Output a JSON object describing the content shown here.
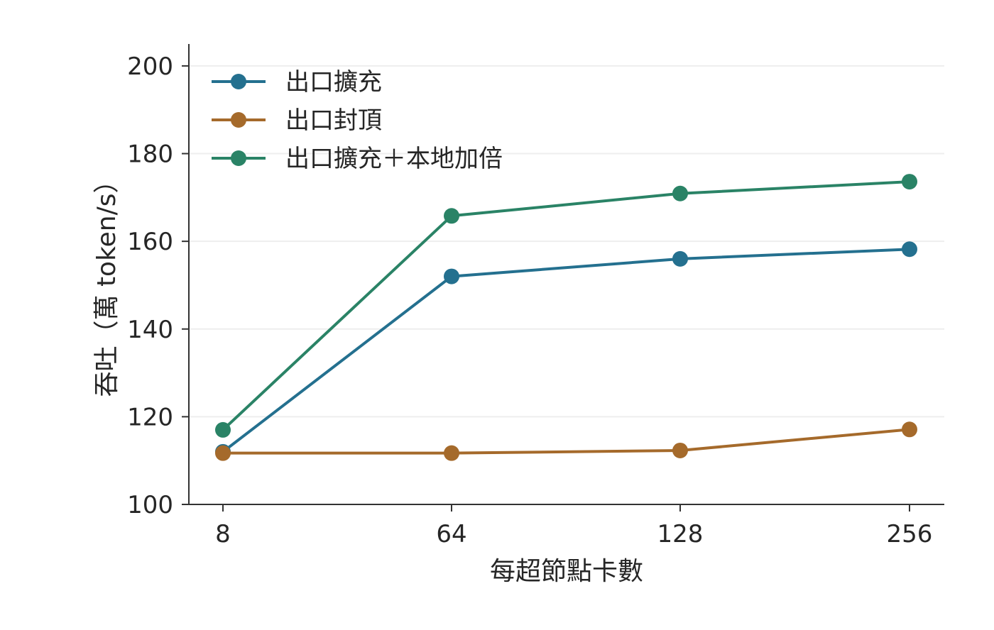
{
  "chart_data": {
    "type": "line",
    "title": "",
    "xlabel": "每超節點卡數",
    "ylabel": "吞吐（萬 token/s）",
    "categories": [
      "8",
      "64",
      "128",
      "256"
    ],
    "ylim": [
      100,
      205
    ],
    "yticks": [
      100,
      120,
      140,
      160,
      180,
      200
    ],
    "grid": true,
    "legend_position": "top-left",
    "series": [
      {
        "name": "出口擴充",
        "color": "#24708f",
        "values": [
          112,
          152,
          156,
          158.2
        ]
      },
      {
        "name": "出口封頂",
        "color": "#a56a2b",
        "values": [
          111.7,
          111.7,
          112.3,
          117.1
        ]
      },
      {
        "name": "出口擴充＋本地加倍",
        "color": "#2a8366",
        "values": [
          117,
          165.8,
          170.9,
          173.6
        ]
      }
    ]
  }
}
